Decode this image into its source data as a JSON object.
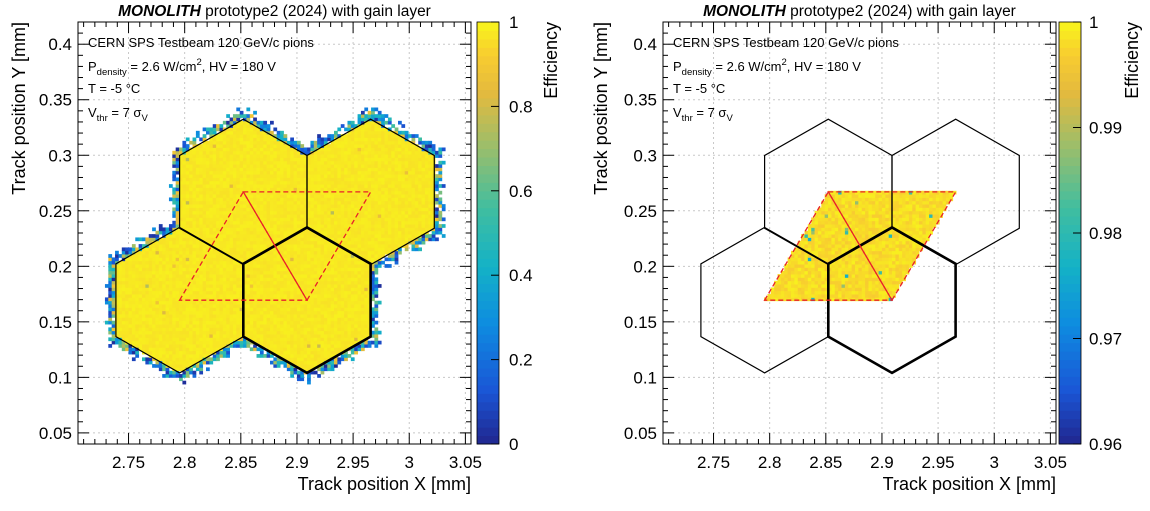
{
  "chart_data": [
    {
      "type": "heatmap",
      "title_bold": "MONOLITH",
      "title_rest": " prototype2 (2024) with gain layer",
      "xlabel": "Track position X [mm]",
      "ylabel": "Track position Y [mm]",
      "zlabel": "Efficiency",
      "xlim": [
        2.705,
        3.055
      ],
      "ylim": [
        0.04,
        0.42
      ],
      "zlim": [
        0,
        1
      ],
      "xticks": [
        "2.75",
        "2.8",
        "2.85",
        "2.9",
        "2.95",
        "3",
        "3.05"
      ],
      "yticks": [
        "0.05",
        "0.1",
        "0.15",
        "0.2",
        "0.25",
        "0.3",
        "0.35",
        "0.4"
      ],
      "zticks": [
        "0",
        "0.2",
        "0.4",
        "0.6",
        "0.8",
        "1"
      ],
      "grid": true,
      "region": "all-pixels",
      "info": {
        "line1": "CERN SPS Testbeam 120 GeV/c pions",
        "p_label": "P",
        "p_sub": "density",
        "p_mid": " = 2.6 W/cm",
        "p_sup": "2",
        "p_end": ", HV = 180 V",
        "line3": "T = -5 °C",
        "v_label": "V",
        "v_sub": "thr",
        "v_mid": " = 7 σ",
        "v_sub2": "V"
      }
    },
    {
      "type": "heatmap",
      "title_bold": "MONOLITH",
      "title_rest": " prototype2 (2024) with gain layer",
      "xlabel": "Track position X [mm]",
      "ylabel": "Track position Y [mm]",
      "zlabel": "Efficiency",
      "xlim": [
        2.705,
        3.055
      ],
      "ylim": [
        0.04,
        0.42
      ],
      "zlim": [
        0.96,
        1
      ],
      "xticks": [
        "2.75",
        "2.8",
        "2.85",
        "2.9",
        "2.95",
        "3",
        "3.05"
      ],
      "yticks": [
        "0.05",
        "0.1",
        "0.15",
        "0.2",
        "0.25",
        "0.3",
        "0.35",
        "0.4"
      ],
      "zticks": [
        "0.96",
        "0.97",
        "0.98",
        "0.99",
        "1"
      ],
      "grid": true,
      "region": "parallelogram",
      "info": {
        "line1": "CERN SPS Testbeam 120 GeV/c pions",
        "p_label": "P",
        "p_sub": "density",
        "p_mid": " = 2.6 W/cm",
        "p_sup": "2",
        "p_end": ", HV = 180 V",
        "line3": "T = -5 °C",
        "v_label": "V",
        "v_sub": "thr",
        "v_mid": " = 7 σ",
        "v_sub2": "V"
      }
    }
  ],
  "geometry_mm": {
    "hex_side": 0.0655,
    "hex_centers": [
      [
        2.79545,
        0.1695
      ],
      [
        2.9089,
        0.1695
      ],
      [
        2.85218,
        0.267
      ],
      [
        2.96563,
        0.267
      ]
    ],
    "bold_hex_index": 1,
    "triangles": [
      [
        [
          2.79545,
          0.1695
        ],
        [
          2.85218,
          0.267
        ],
        [
          2.9089,
          0.1695
        ]
      ],
      [
        [
          2.85218,
          0.267
        ],
        [
          2.96563,
          0.267
        ],
        [
          2.9089,
          0.1695
        ]
      ]
    ]
  },
  "colors": {
    "yellow": "#f7f01e",
    "line": "#000000",
    "dashed": "#e8202a",
    "grid": "#c8c8c8"
  }
}
